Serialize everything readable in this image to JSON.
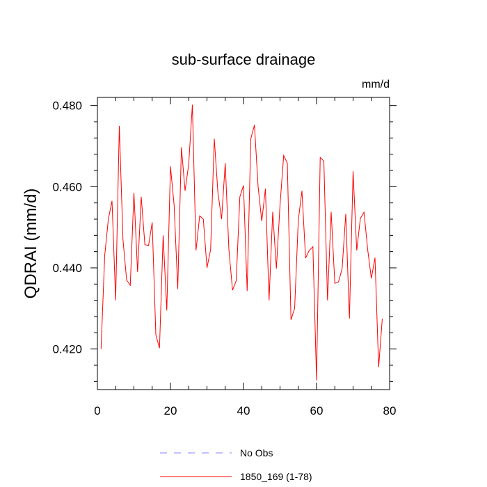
{
  "chart_data": {
    "type": "line",
    "title": "sub-surface drainage",
    "units": "mm/d",
    "xlabel": "",
    "ylabel": "QDRAI  (mm/d)",
    "xlim": [
      0,
      80
    ],
    "ylim": [
      0.41,
      0.482
    ],
    "x_ticks": [
      0,
      20,
      40,
      60,
      80
    ],
    "x_tick_labels": [
      "0",
      "20",
      "40",
      "60",
      "80"
    ],
    "y_ticks": [
      0.42,
      0.44,
      0.46,
      0.48
    ],
    "y_tick_labels": [
      "0.420",
      "0.440",
      "0.460",
      "0.480"
    ],
    "grid": false,
    "legend_position": "bottom",
    "legend": [
      {
        "label": "No Obs",
        "color": "#8080ff",
        "style": "dashed"
      },
      {
        "label": "1850_169 (1-78)",
        "color": "#ff0000",
        "style": "solid"
      }
    ],
    "series": [
      {
        "name": "1850_169 (1-78)",
        "color": "#ff0000",
        "x": [
          1,
          2,
          3,
          4,
          5,
          6,
          7,
          8,
          9,
          10,
          11,
          12,
          13,
          14,
          15,
          16,
          17,
          18,
          19,
          20,
          21,
          22,
          23,
          24,
          25,
          26,
          27,
          28,
          29,
          30,
          31,
          32,
          33,
          34,
          35,
          36,
          37,
          38,
          39,
          40,
          41,
          42,
          43,
          44,
          45,
          46,
          47,
          48,
          49,
          50,
          51,
          52,
          53,
          54,
          55,
          56,
          57,
          58,
          59,
          60,
          61,
          62,
          63,
          64,
          65,
          66,
          67,
          68,
          69,
          70,
          71,
          72,
          73,
          74,
          75,
          76,
          77,
          78
        ],
        "y": [
          0.42,
          0.443,
          0.452,
          0.4565,
          0.432,
          0.475,
          0.447,
          0.437,
          0.4357,
          0.4585,
          0.439,
          0.4575,
          0.4457,
          0.4455,
          0.4512,
          0.4235,
          0.4202,
          0.448,
          0.4295,
          0.465,
          0.4555,
          0.4348,
          0.4697,
          0.459,
          0.4655,
          0.4802,
          0.4443,
          0.4528,
          0.452,
          0.44,
          0.4445,
          0.4718,
          0.4585,
          0.452,
          0.4658,
          0.4445,
          0.4345,
          0.4368,
          0.4575,
          0.4603,
          0.4343,
          0.4718,
          0.4752,
          0.46,
          0.4515,
          0.4595,
          0.432,
          0.4538,
          0.4398,
          0.4555,
          0.4677,
          0.4658,
          0.4272,
          0.43,
          0.4517,
          0.459,
          0.4424,
          0.4443,
          0.4452,
          0.4123,
          0.4672,
          0.4663,
          0.432,
          0.4538,
          0.4362,
          0.4365,
          0.4398,
          0.4533,
          0.4275,
          0.4638,
          0.4443,
          0.4522,
          0.4537,
          0.4445,
          0.4374,
          0.4425,
          0.4155,
          0.4275
        ]
      }
    ]
  }
}
